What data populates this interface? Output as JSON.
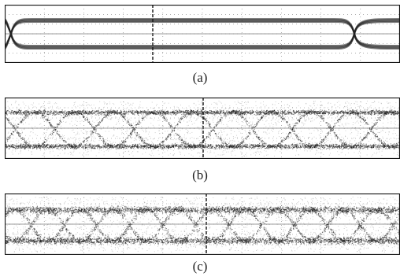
{
  "figure": {
    "panels": [
      {
        "id": "a",
        "caption": "(a)",
        "style": "clean-open-eye",
        "eye_count": 1
      },
      {
        "id": "b",
        "caption": "(b)",
        "style": "noisy-multi-eye",
        "eye_count": 5
      },
      {
        "id": "c",
        "caption": "(c)",
        "style": "noisier-multi-eye",
        "eye_count": 6
      }
    ],
    "colors": {
      "trace": "#1a1a1a",
      "grid": "#7a7a7a",
      "frame": "#111111",
      "background": "#ffffff"
    }
  }
}
